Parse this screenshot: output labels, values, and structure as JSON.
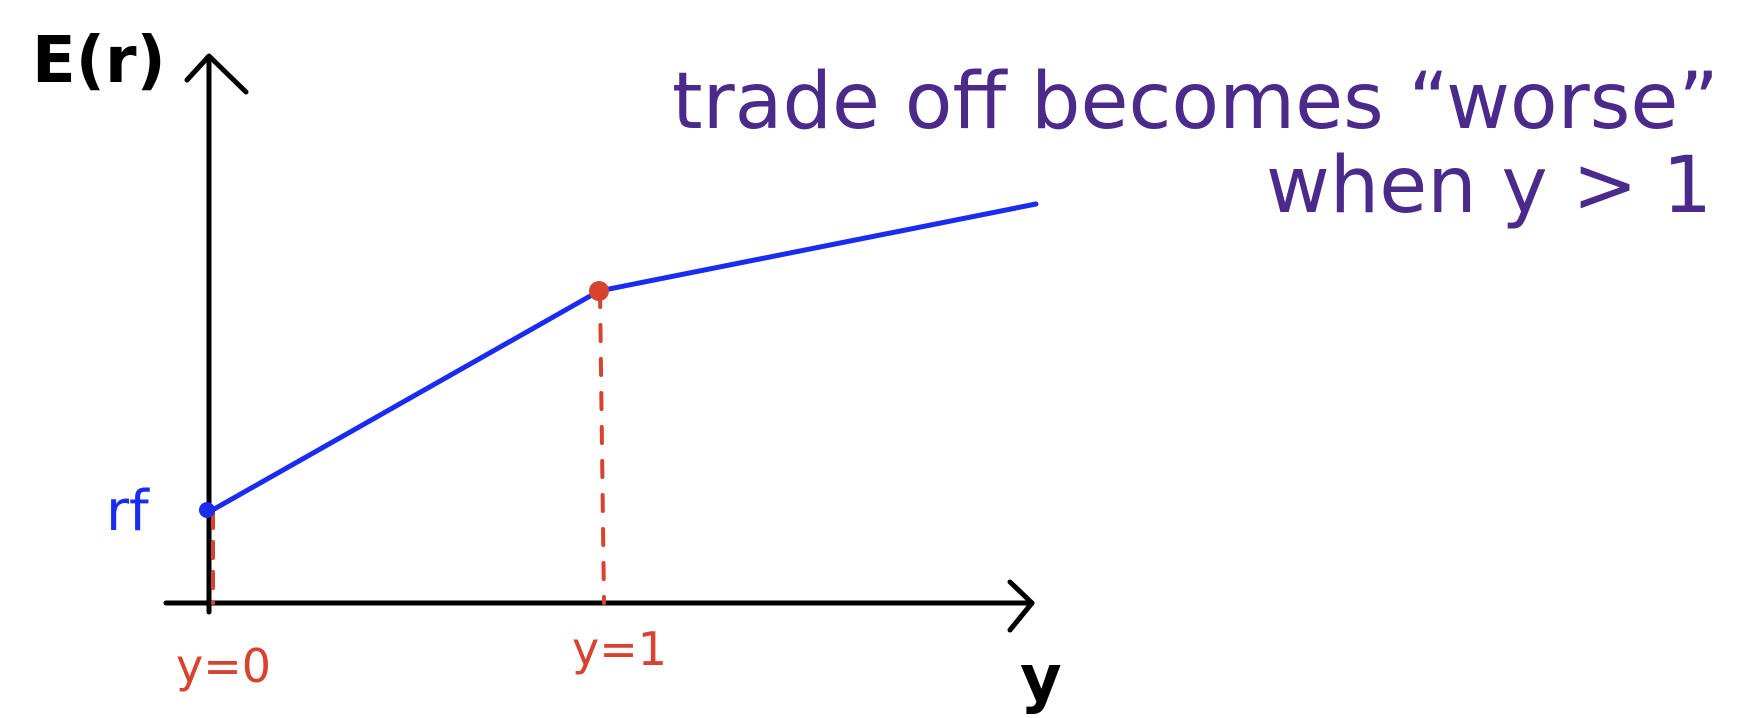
{
  "colors": {
    "axis": "#000000",
    "curve": "#1a2cf0",
    "marker": "#d8432f",
    "annotation": "#4b2a8c"
  },
  "axes": {
    "y_label": "E(r)",
    "x_label": "y"
  },
  "intercept_label": "rf",
  "ticks": {
    "y0": "y=0",
    "y1": "y=1"
  },
  "annotation": {
    "line1": "trade off becomes “worse”",
    "line2": "when y > 1"
  }
}
